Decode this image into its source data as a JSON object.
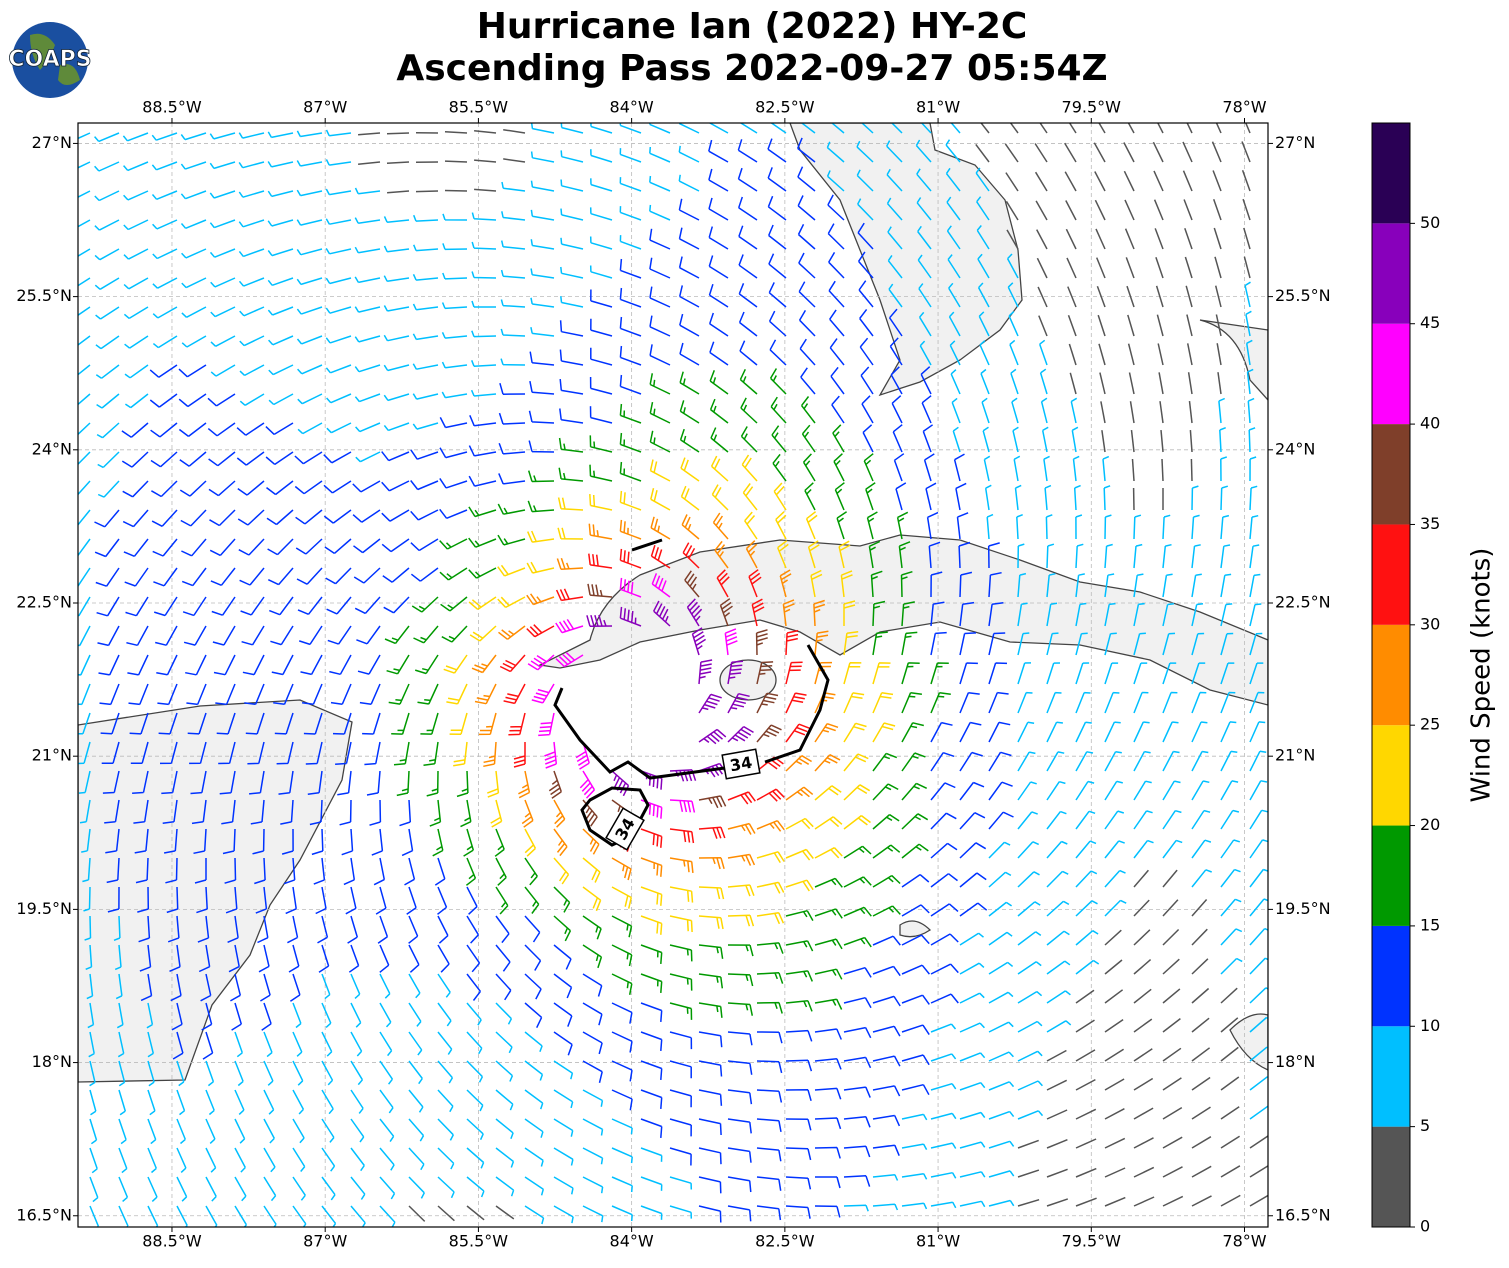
{
  "title": [
    "Hurricane Ian (2022) HY-2C",
    "Ascending Pass 2022-09-27 05:54Z"
  ],
  "logo": "COAPS",
  "map": {
    "xlim": [
      -89.42,
      -77.77
    ],
    "ylim": [
      16.39,
      27.2
    ],
    "xticks": [
      {
        "value": -88.5,
        "label": "88.5°W"
      },
      {
        "value": -87,
        "label": "87°W"
      },
      {
        "value": -85.5,
        "label": "85.5°W"
      },
      {
        "value": -84,
        "label": "84°W"
      },
      {
        "value": -82.5,
        "label": "82.5°W"
      },
      {
        "value": -81,
        "label": "81°W"
      },
      {
        "value": -79.5,
        "label": "79.5°W"
      },
      {
        "value": -78,
        "label": "78°W"
      }
    ],
    "yticks": [
      {
        "value": 16.5,
        "label": "16.5°N"
      },
      {
        "value": 18,
        "label": "18°N"
      },
      {
        "value": 19.5,
        "label": "19.5°N"
      },
      {
        "value": 21,
        "label": "21°N"
      },
      {
        "value": 22.5,
        "label": "22.5°N"
      },
      {
        "value": 24,
        "label": "24°N"
      },
      {
        "value": 25.5,
        "label": "25.5°N"
      },
      {
        "value": 27,
        "label": "27°N"
      }
    ],
    "grid": true,
    "contour_level": 34
  },
  "colorbar": {
    "label": "Wind Speed (knots)",
    "ylim": [
      0,
      55
    ],
    "ticks": [
      0,
      5,
      10,
      15,
      20,
      25,
      30,
      35,
      40,
      45,
      50
    ],
    "colors": [
      "#555555",
      "#00bfff",
      "#0033ff",
      "#009900",
      "#ffd700",
      "#ff8c00",
      "#ff1111",
      "#7f3f2a",
      "#ff00ff",
      "#8800bb",
      "#2a0055"
    ]
  }
}
